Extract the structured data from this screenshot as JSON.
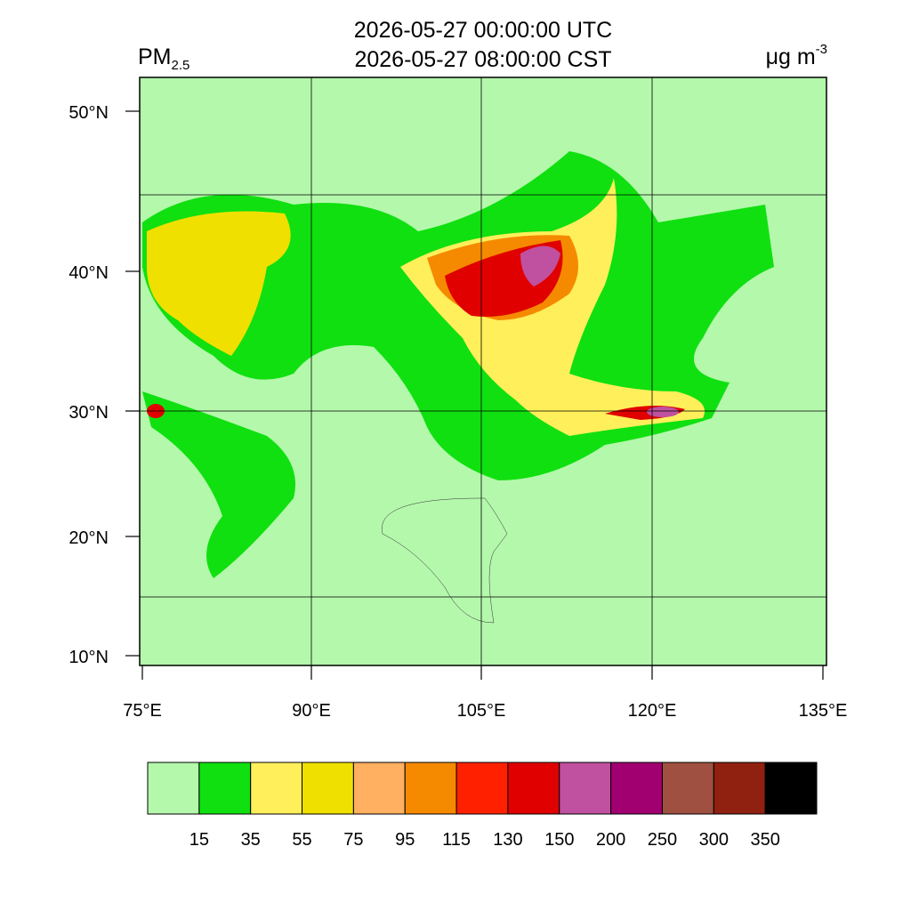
{
  "header": {
    "title_lines": [
      "2026-05-27 00:00:00 UTC",
      "2026-05-27 08:00:00 CST"
    ],
    "variable": {
      "text": "PM",
      "subscript": "2.5"
    },
    "units": {
      "text": "μg m",
      "superscript": "-3"
    }
  },
  "map": {
    "lat_ticks": [
      "50°N",
      "40°N",
      "30°N",
      "20°N",
      "10°N"
    ],
    "lon_ticks": [
      "75°E",
      "90°E",
      "105°E",
      "120°E",
      "135°E"
    ]
  },
  "colorbar": {
    "colors": [
      "#b4f8ac",
      "#10e010",
      "#ffef5a",
      "#f0e000",
      "#ffb060",
      "#f58a00",
      "#ff2000",
      "#e00000",
      "#c050a0",
      "#a00070",
      "#a05040",
      "#902010",
      "#000000"
    ],
    "labels": [
      "15",
      "35",
      "55",
      "75",
      "95",
      "115",
      "130",
      "150",
      "200",
      "250",
      "300",
      "350"
    ]
  }
}
